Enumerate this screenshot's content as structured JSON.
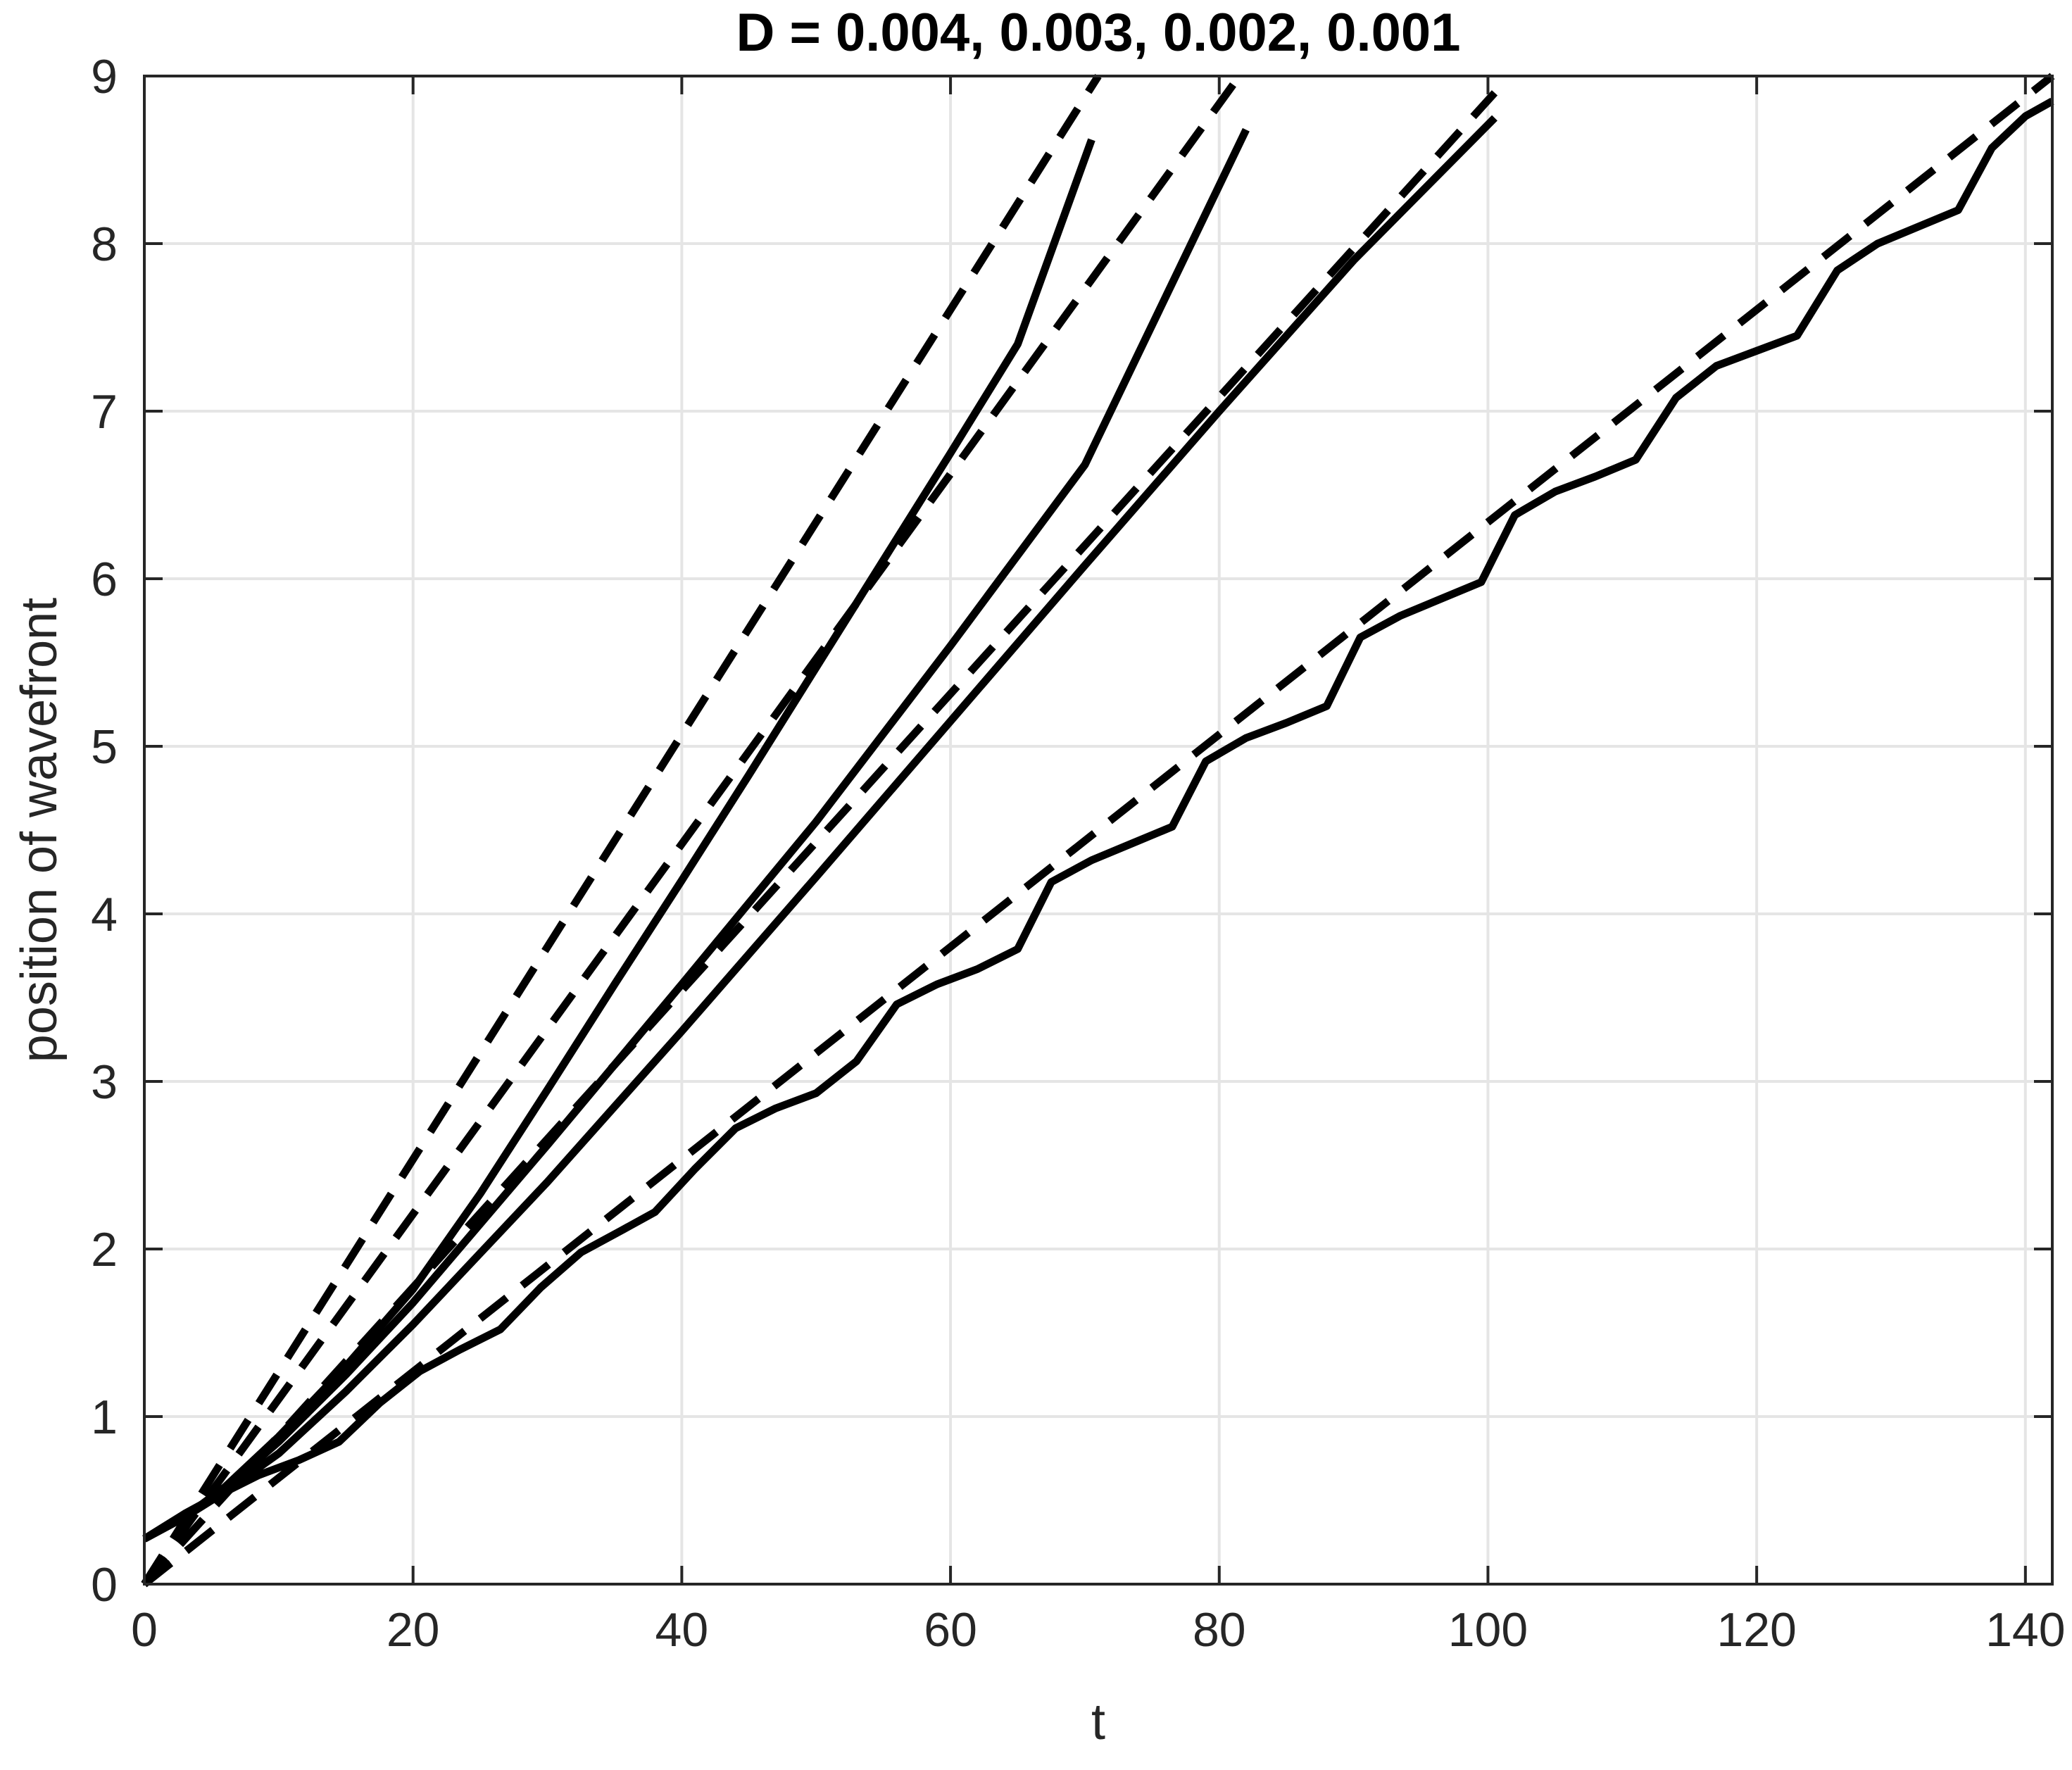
{
  "chart_data": {
    "type": "line",
    "title": "D = 0.004, 0.003, 0.002, 0.001",
    "xlabel": "t",
    "ylabel": "position of wavefront",
    "xlim": [
      0,
      142
    ],
    "ylim": [
      0,
      9
    ],
    "xticks": [
      0,
      20,
      40,
      60,
      80,
      100,
      120,
      140
    ],
    "yticks": [
      0,
      1,
      2,
      3,
      4,
      5,
      6,
      7,
      8,
      9
    ],
    "grid": true,
    "legend": "none",
    "line_color": "#000000",
    "grid_color": "#e5e5e5",
    "series": [
      {
        "style": "dashed",
        "x": [
          0,
          71
        ],
        "y": [
          0,
          9.0
        ]
      },
      {
        "style": "solid",
        "x": [
          0,
          3,
          6,
          10,
          15,
          20,
          25,
          30,
          35,
          40,
          45,
          50,
          55,
          60,
          65,
          70.5
        ],
        "y": [
          0.27,
          0.4,
          0.58,
          0.88,
          1.3,
          1.76,
          2.33,
          2.95,
          3.58,
          4.2,
          4.83,
          5.47,
          6.11,
          6.75,
          7.4,
          8.62
        ]
      },
      {
        "style": "dashed",
        "x": [
          0,
          81.5
        ],
        "y": [
          0,
          9.0
        ]
      },
      {
        "style": "solid",
        "x": [
          0,
          3,
          6,
          10,
          15,
          20,
          25,
          30,
          40,
          50,
          60,
          70,
          82
        ],
        "y": [
          0.27,
          0.4,
          0.57,
          0.85,
          1.25,
          1.68,
          2.15,
          2.62,
          3.58,
          4.55,
          5.6,
          6.68,
          8.68
        ]
      },
      {
        "style": "dashed",
        "x": [
          0,
          100.5
        ],
        "y": [
          0,
          8.9
        ]
      },
      {
        "style": "solid",
        "x": [
          0,
          3,
          6,
          10,
          15,
          20,
          30,
          40,
          50,
          60,
          70,
          80,
          90,
          100.5
        ],
        "y": [
          0.27,
          0.4,
          0.55,
          0.78,
          1.15,
          1.55,
          2.4,
          3.3,
          4.22,
          5.15,
          6.08,
          7.0,
          7.9,
          8.75
        ]
      },
      {
        "style": "dashed",
        "x": [
          0,
          142
        ],
        "y": [
          0,
          9.0
        ]
      },
      {
        "style": "solid",
        "x": [
          0,
          3,
          5.5,
          8.5,
          11.5,
          14.5,
          17.5,
          20.5,
          23.5,
          26.5,
          29.5,
          32.5,
          35.5,
          38,
          41,
          44,
          47,
          50,
          53,
          56,
          59,
          62,
          65,
          67.5,
          70.5,
          73.5,
          76.5,
          79,
          82,
          85,
          88,
          90.5,
          93.5,
          96.5,
          99.5,
          102,
          105,
          108,
          111,
          114,
          117,
          120,
          123,
          126,
          129,
          132,
          135,
          137.5,
          140,
          142
        ],
        "y": [
          0.27,
          0.42,
          0.53,
          0.65,
          0.74,
          0.85,
          1.08,
          1.27,
          1.4,
          1.52,
          1.77,
          1.98,
          2.11,
          2.22,
          2.48,
          2.72,
          2.84,
          2.93,
          3.12,
          3.46,
          3.58,
          3.67,
          3.79,
          4.19,
          4.32,
          4.42,
          4.52,
          4.91,
          5.05,
          5.14,
          5.24,
          5.65,
          5.78,
          5.88,
          5.98,
          6.38,
          6.52,
          6.61,
          6.71,
          7.08,
          7.27,
          7.36,
          7.45,
          7.84,
          8.0,
          8.1,
          8.2,
          8.57,
          8.76,
          8.85
        ]
      }
    ]
  }
}
